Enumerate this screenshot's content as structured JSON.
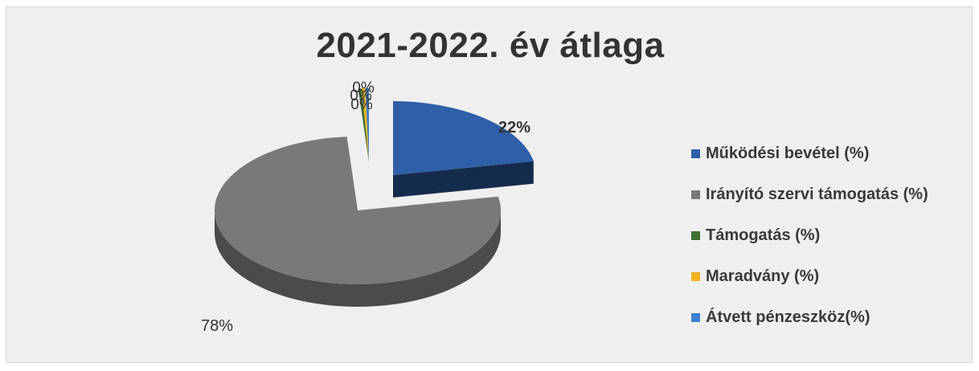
{
  "chart_data": {
    "type": "pie",
    "title": "2021-2022. év átlaga",
    "categories": [
      "Működési bevétel (%)",
      "Irányító szervi támogatás (%)",
      "Támogatás (%)",
      "Maradvány (%)",
      "Átvett pénzeszköz(%)"
    ],
    "values": [
      22,
      78,
      0,
      0,
      0
    ],
    "data_labels": [
      "22%",
      "78%",
      "0%",
      "0%",
      "0%"
    ],
    "colors": {
      "mukodesi": "#2e5fa8",
      "iranyito": "#7a7878",
      "tamogatas": "#3f6e34",
      "maradvany": "#f2b21d",
      "atvett": "#3d7fd0"
    },
    "legend_placement": "right",
    "style": "3d-exploded"
  }
}
